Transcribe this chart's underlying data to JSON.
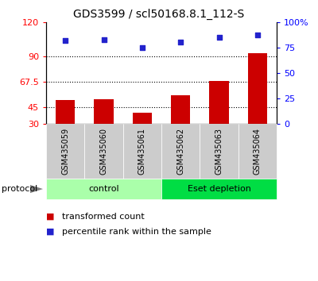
{
  "title": "GDS3599 / scl50168.8.1_112-S",
  "samples": [
    "GSM435059",
    "GSM435060",
    "GSM435061",
    "GSM435062",
    "GSM435063",
    "GSM435064"
  ],
  "bar_values": [
    51,
    52,
    40,
    55,
    68,
    93
  ],
  "dot_values": [
    82,
    83,
    75,
    81,
    85,
    88
  ],
  "bar_color": "#cc0000",
  "dot_color": "#2222cc",
  "ylim_left": [
    30,
    120
  ],
  "ylim_right": [
    0,
    100
  ],
  "left_ticks": [
    30,
    45,
    67.5,
    90,
    120
  ],
  "left_tick_labels": [
    "30",
    "45",
    "67.5",
    "90",
    "120"
  ],
  "right_ticks": [
    0,
    25,
    50,
    75,
    100
  ],
  "right_tick_labels": [
    "0",
    "25",
    "50",
    "75",
    "100%"
  ],
  "hlines": [
    45,
    67.5,
    90
  ],
  "groups": [
    {
      "label": "control",
      "indices": [
        0,
        1,
        2
      ],
      "color": "#aaffaa"
    },
    {
      "label": "Eset depletion",
      "indices": [
        3,
        4,
        5
      ],
      "color": "#00dd44"
    }
  ],
  "protocol_label": "protocol",
  "legend_bar_label": "transformed count",
  "legend_dot_label": "percentile rank within the sample",
  "title_fontsize": 10,
  "tick_fontsize": 8,
  "label_fontsize": 8,
  "sample_label_fontsize": 7,
  "group_label_fontsize": 8,
  "x_label_area_color": "#cccccc",
  "bar_width": 0.5
}
